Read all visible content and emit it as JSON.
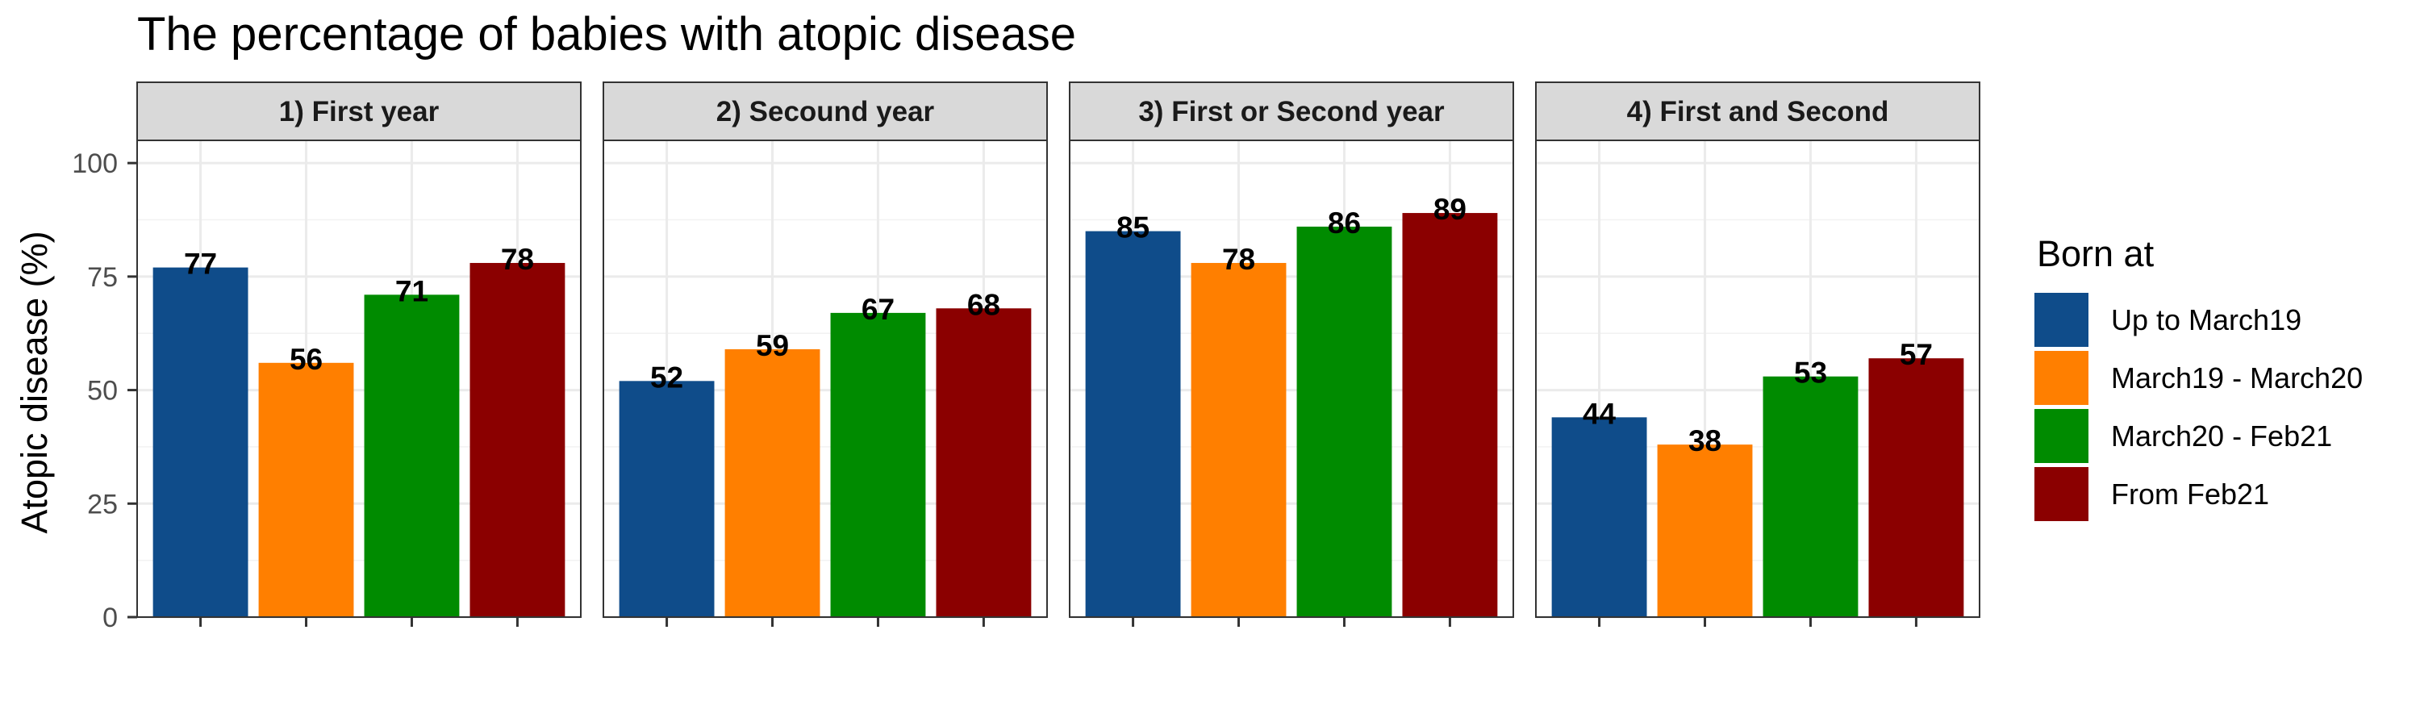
{
  "chart_data": {
    "type": "bar",
    "title": "The percentage of babies with atopic disease",
    "ylabel": "Atopic disease (%)",
    "xlabel": "",
    "ylim": [
      0,
      105
    ],
    "yticks": [
      0,
      25,
      50,
      75,
      100
    ],
    "grid": true,
    "legend_position": "right",
    "legend_title": "Born at",
    "series": [
      {
        "name": "Up to March19",
        "color": "#0F4C8A"
      },
      {
        "name": "March19 - March20",
        "color": "#FF7F00"
      },
      {
        "name": "March20 - Feb21",
        "color": "#008B00"
      },
      {
        "name": "From Feb21",
        "color": "#8B0000"
      }
    ],
    "panels": [
      {
        "label": "1) First year",
        "values": [
          77,
          56,
          71,
          78
        ]
      },
      {
        "label": "2) Secound year",
        "values": [
          52,
          59,
          67,
          68
        ]
      },
      {
        "label": "3) First or Second year",
        "values": [
          85,
          78,
          86,
          89
        ]
      },
      {
        "label": "4) First and Second",
        "values": [
          44,
          38,
          53,
          57
        ]
      }
    ]
  }
}
